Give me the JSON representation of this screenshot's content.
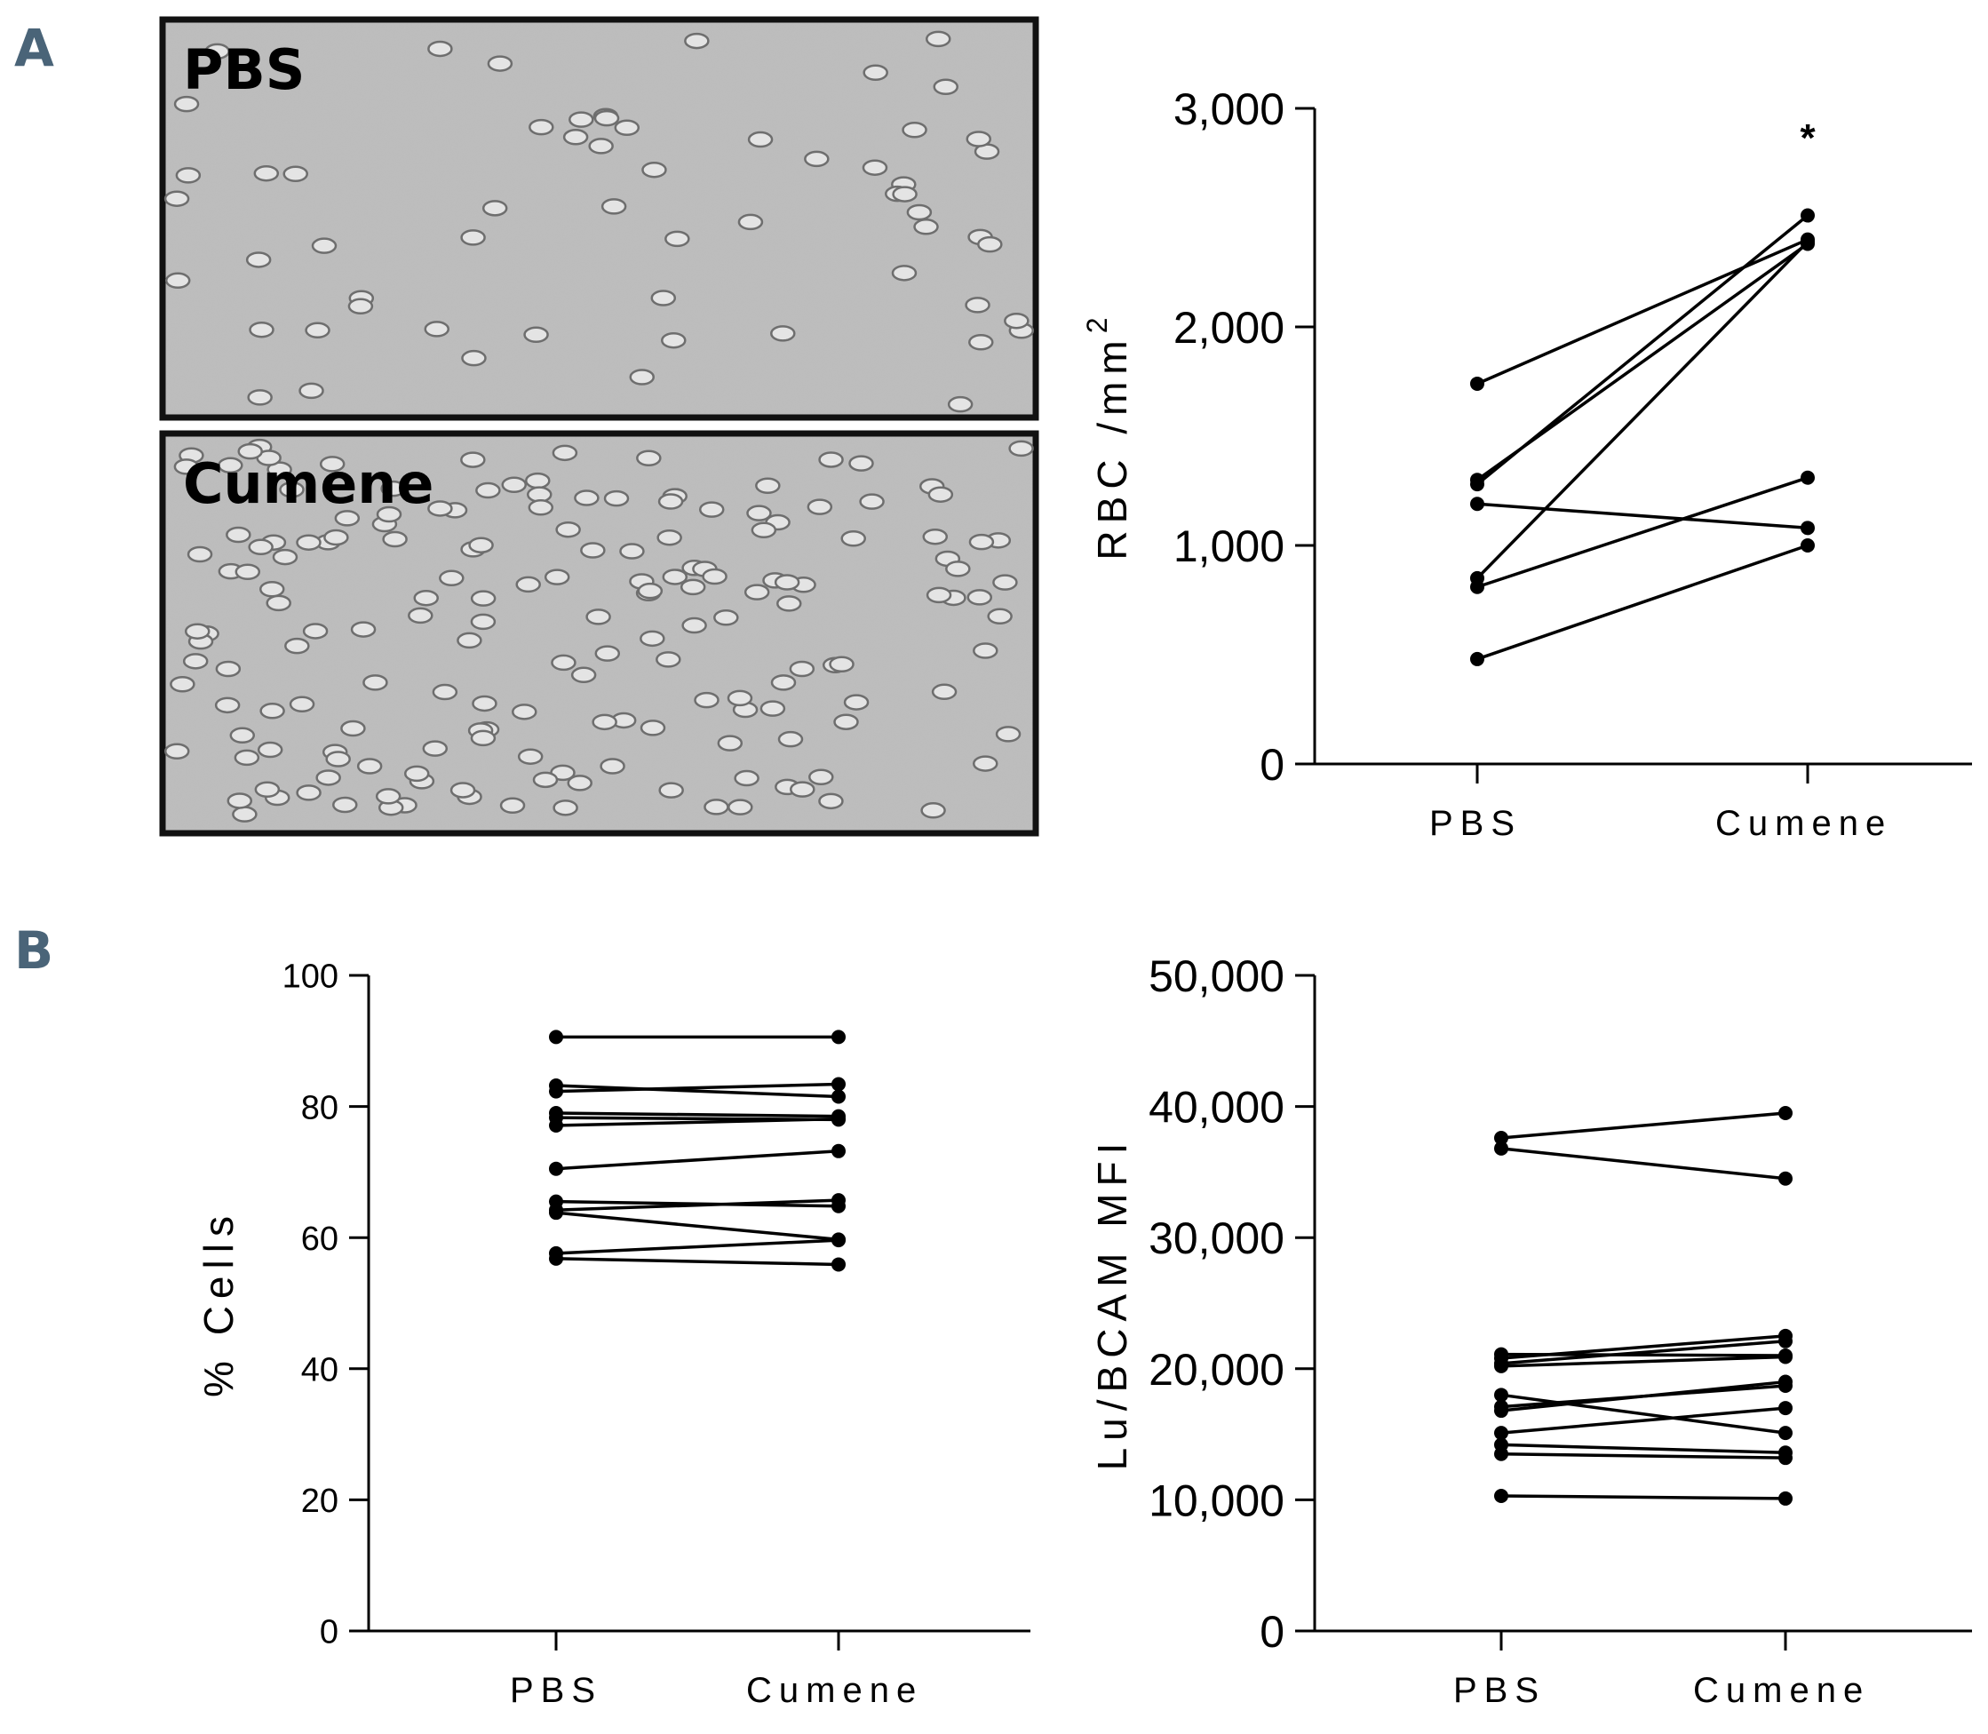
{
  "panels": {
    "a_label": "A",
    "b_label": "B",
    "micrograph_top_label": "PBS",
    "micrograph_bottom_label": "Cumene"
  },
  "chart_data": [
    {
      "id": "rbc",
      "type": "line",
      "title": "",
      "ylabel": "RBC /mm",
      "ylabel_sup": "2",
      "categories": [
        "PBS",
        "Cumene"
      ],
      "ylim": [
        0,
        3000
      ],
      "yticks": [
        "0",
        "1,000",
        "2,000",
        "3,000"
      ],
      "annotation": "*",
      "series": [
        {
          "name": "1",
          "values": [
            1740,
            2400
          ]
        },
        {
          "name": "2",
          "values": [
            1300,
            2380
          ]
        },
        {
          "name": "3",
          "values": [
            1280,
            2510
          ]
        },
        {
          "name": "4",
          "values": [
            1190,
            1080
          ]
        },
        {
          "name": "5",
          "values": [
            850,
            2390
          ]
        },
        {
          "name": "6",
          "values": [
            810,
            1310
          ]
        },
        {
          "name": "7",
          "values": [
            480,
            1000
          ]
        }
      ]
    },
    {
      "id": "cells",
      "type": "line",
      "title": "",
      "ylabel": "% Cells",
      "categories": [
        "PBS",
        "Cumene"
      ],
      "ylim": [
        0,
        100
      ],
      "yticks": [
        "0",
        "20",
        "40",
        "60",
        "80",
        "100"
      ],
      "series": [
        {
          "name": "1",
          "values": [
            90.6,
            90.6
          ]
        },
        {
          "name": "2",
          "values": [
            83.2,
            81.5
          ]
        },
        {
          "name": "3",
          "values": [
            82.3,
            83.4
          ]
        },
        {
          "name": "4",
          "values": [
            79.0,
            78.5
          ]
        },
        {
          "name": "5",
          "values": [
            78.3,
            78.0
          ]
        },
        {
          "name": "6",
          "values": [
            77.1,
            78.1
          ]
        },
        {
          "name": "7",
          "values": [
            70.5,
            73.2
          ]
        },
        {
          "name": "8",
          "values": [
            65.5,
            64.8
          ]
        },
        {
          "name": "9",
          "values": [
            64.2,
            65.7
          ]
        },
        {
          "name": "10",
          "values": [
            63.8,
            59.7
          ]
        },
        {
          "name": "11",
          "values": [
            57.6,
            59.6
          ]
        },
        {
          "name": "12",
          "values": [
            56.8,
            55.9
          ]
        }
      ]
    },
    {
      "id": "lubcam",
      "type": "line",
      "title": "",
      "ylabel": "Lu/BCAM MFI",
      "categories": [
        "PBS",
        "Cumene"
      ],
      "ylim": [
        0,
        50000
      ],
      "yticks": [
        "0",
        "10,000",
        "20,000",
        "30,000",
        "40,000",
        "50,000"
      ],
      "series": [
        {
          "name": "1",
          "values": [
            37600,
            39500
          ]
        },
        {
          "name": "2",
          "values": [
            36800,
            34500
          ]
        },
        {
          "name": "3",
          "values": [
            21100,
            21000
          ]
        },
        {
          "name": "4",
          "values": [
            20800,
            22500
          ]
        },
        {
          "name": "5",
          "values": [
            20400,
            22100
          ]
        },
        {
          "name": "6",
          "values": [
            20200,
            20900
          ]
        },
        {
          "name": "7",
          "values": [
            18000,
            15100
          ]
        },
        {
          "name": "8",
          "values": [
            17100,
            18700
          ]
        },
        {
          "name": "9",
          "values": [
            16800,
            19000
          ]
        },
        {
          "name": "10",
          "values": [
            15100,
            17000
          ]
        },
        {
          "name": "11",
          "values": [
            14200,
            13600
          ]
        },
        {
          "name": "12",
          "values": [
            13500,
            13200
          ]
        },
        {
          "name": "13",
          "values": [
            10300,
            10100
          ]
        }
      ]
    }
  ]
}
